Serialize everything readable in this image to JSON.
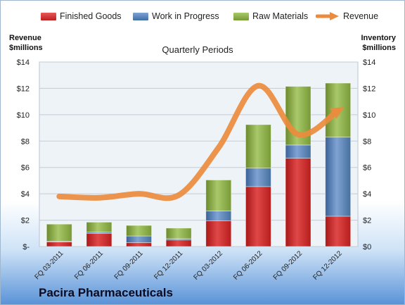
{
  "legend": {
    "finished": "Finished Goods",
    "wip": "Work in Progress",
    "raw": "Raw Materials",
    "revenue": "Revenue"
  },
  "left_axis_title": [
    "Revenue",
    "$millions"
  ],
  "right_axis_title": [
    "Inventory",
    "$millions"
  ],
  "company_name": "Pacira Pharmaceuticals",
  "colors": {
    "finished": "#d42a2a",
    "wip": "#4f81bd",
    "raw": "#8eb045",
    "revenue": "#ec8b3d"
  },
  "chart_data": {
    "type": "bar",
    "stacked": true,
    "title": "Quarterly Periods",
    "categories": [
      "FQ 03-2011",
      "FQ 06-2011",
      "FQ 09-2011",
      "FQ 12-2011",
      "FQ 03-2012",
      "FQ 06-2012",
      "FQ 09-2012",
      "FQ 12-2012"
    ],
    "series": [
      {
        "name": "Finished Goods",
        "values": [
          0.35,
          1.0,
          0.3,
          0.5,
          1.95,
          4.55,
          6.7,
          2.3
        ]
      },
      {
        "name": "Work in Progress",
        "values": [
          0.05,
          0.1,
          0.5,
          0.1,
          0.75,
          1.4,
          1.0,
          6.0
        ]
      },
      {
        "name": "Raw Materials",
        "values": [
          1.3,
          0.75,
          0.8,
          0.8,
          2.35,
          3.3,
          4.45,
          4.1
        ]
      },
      {
        "name": "Revenue",
        "type": "line",
        "axis": "left",
        "values": [
          3.8,
          3.7,
          4.0,
          3.9,
          7.5,
          12.2,
          8.5,
          10.3
        ]
      }
    ],
    "y_left": {
      "ticks": [
        "$-",
        "$2",
        "$4",
        "$6",
        "$8",
        "$10",
        "$12",
        "$14"
      ],
      "min": 0,
      "max": 14
    },
    "y_right": {
      "ticks": [
        "$0",
        "$2",
        "$4",
        "$6",
        "$8",
        "$10",
        "$12",
        "$14"
      ],
      "min": 0,
      "max": 14
    },
    "grid": true,
    "legend_position": "top"
  }
}
